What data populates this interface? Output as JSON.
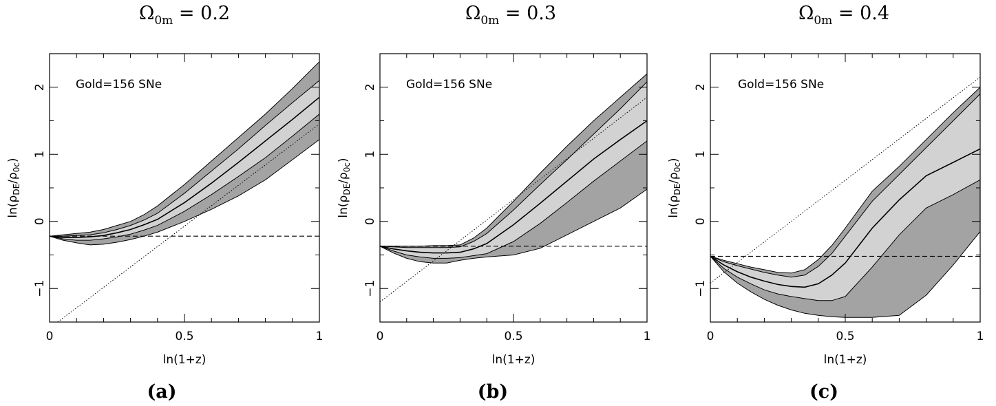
{
  "chart_data": [
    {
      "type": "area",
      "panel_label": "(a)",
      "title": {
        "symbol": "Ω",
        "subscript": "0m",
        "value": " = 0.2"
      },
      "annotation": "Gold=156 SNe",
      "xlabel": "ln(1+z)",
      "ylabel": {
        "prefix": "ln(",
        "rho1": "ρ",
        "sub1": "DE",
        "slash": "/",
        "rho2": "ρ",
        "sub2": "0c",
        "suffix": ")"
      },
      "xlim": [
        0,
        1
      ],
      "ylim": [
        -1.5,
        2.5
      ],
      "xticks": [
        {
          "v": 0,
          "label": "0"
        },
        {
          "v": 0.5,
          "label": "0.5"
        },
        {
          "v": 1,
          "label": "1"
        }
      ],
      "yticks": [
        {
          "v": -1,
          "label": "−1"
        },
        {
          "v": 0,
          "label": "0"
        },
        {
          "v": 1,
          "label": "1"
        },
        {
          "v": 2,
          "label": "2"
        }
      ],
      "x": [
        0,
        0.05,
        0.1,
        0.15,
        0.2,
        0.25,
        0.3,
        0.35,
        0.4,
        0.5,
        0.6,
        0.7,
        0.8,
        0.9,
        1.0
      ],
      "band_2sigma_upper": [
        -0.22,
        -0.2,
        -0.18,
        -0.16,
        -0.12,
        -0.06,
        0.0,
        0.1,
        0.23,
        0.55,
        0.9,
        1.25,
        1.6,
        1.98,
        2.38
      ],
      "band_1sigma_upper": [
        -0.22,
        -0.22,
        -0.21,
        -0.2,
        -0.17,
        -0.12,
        -0.06,
        0.02,
        0.12,
        0.42,
        0.75,
        1.08,
        1.43,
        1.77,
        2.1
      ],
      "best_fit": [
        -0.22,
        -0.24,
        -0.24,
        -0.23,
        -0.21,
        -0.17,
        -0.12,
        -0.05,
        0.03,
        0.28,
        0.57,
        0.88,
        1.2,
        1.52,
        1.85
      ],
      "band_1sigma_lower": [
        -0.22,
        -0.26,
        -0.28,
        -0.28,
        -0.26,
        -0.23,
        -0.19,
        -0.13,
        -0.06,
        0.15,
        0.4,
        0.67,
        0.95,
        1.27,
        1.6
      ],
      "band_2sigma_lower": [
        -0.22,
        -0.28,
        -0.32,
        -0.35,
        -0.34,
        -0.31,
        -0.27,
        -0.22,
        -0.16,
        0.0,
        0.18,
        0.38,
        0.62,
        0.92,
        1.22
      ],
      "dashed_const": -0.22,
      "dotted_line": {
        "x": [
          0.03,
          1.0
        ],
        "y": [
          -1.5,
          1.45
        ]
      },
      "colors": {
        "outer_band": "#a3a3a3",
        "inner_band": "#d2d2d2",
        "lines": "#000000"
      }
    },
    {
      "type": "area",
      "panel_label": "(b)",
      "title": {
        "symbol": "Ω",
        "subscript": "0m",
        "value": " = 0.3"
      },
      "annotation": "Gold=156 SNe",
      "xlabel": "ln(1+z)",
      "ylabel": {
        "prefix": "ln(",
        "rho1": "ρ",
        "sub1": "DE",
        "slash": "/",
        "rho2": "ρ",
        "sub2": "0c",
        "suffix": ")"
      },
      "xlim": [
        0,
        1
      ],
      "ylim": [
        -1.5,
        2.5
      ],
      "xticks": [
        {
          "v": 0,
          "label": "0"
        },
        {
          "v": 0.5,
          "label": "0.5"
        },
        {
          "v": 1,
          "label": "1"
        }
      ],
      "yticks": [
        {
          "v": -1,
          "label": "−1"
        },
        {
          "v": 0,
          "label": "0"
        },
        {
          "v": 1,
          "label": "1"
        },
        {
          "v": 2,
          "label": "2"
        }
      ],
      "x": [
        0,
        0.05,
        0.1,
        0.15,
        0.2,
        0.25,
        0.3,
        0.35,
        0.4,
        0.5,
        0.6,
        0.7,
        0.8,
        0.9,
        1.0
      ],
      "band_2sigma_upper": [
        -0.37,
        -0.37,
        -0.37,
        -0.37,
        -0.36,
        -0.36,
        -0.35,
        -0.25,
        -0.1,
        0.3,
        0.72,
        1.12,
        1.5,
        1.85,
        2.2
      ],
      "band_1sigma_upper": [
        -0.37,
        -0.38,
        -0.39,
        -0.39,
        -0.39,
        -0.39,
        -0.38,
        -0.3,
        -0.18,
        0.17,
        0.55,
        0.92,
        1.3,
        1.68,
        2.08
      ],
      "best_fit": [
        -0.37,
        -0.41,
        -0.44,
        -0.46,
        -0.47,
        -0.47,
        -0.46,
        -0.41,
        -0.33,
        -0.05,
        0.27,
        0.6,
        0.93,
        1.22,
        1.5
      ],
      "band_1sigma_lower": [
        -0.37,
        -0.44,
        -0.5,
        -0.53,
        -0.55,
        -0.55,
        -0.54,
        -0.51,
        -0.48,
        -0.3,
        -0.03,
        0.28,
        0.6,
        0.9,
        1.2
      ],
      "band_2sigma_lower": [
        -0.37,
        -0.47,
        -0.55,
        -0.6,
        -0.62,
        -0.62,
        -0.58,
        -0.55,
        -0.53,
        -0.5,
        -0.4,
        -0.2,
        0.0,
        0.2,
        0.48
      ],
      "dashed_const": -0.37,
      "dotted_line": {
        "x": [
          0.0,
          1.0
        ],
        "y": [
          -1.2,
          1.85
        ]
      },
      "colors": {
        "outer_band": "#a3a3a3",
        "inner_band": "#d2d2d2",
        "lines": "#000000"
      }
    },
    {
      "type": "area",
      "panel_label": "(c)",
      "title": {
        "symbol": "Ω",
        "subscript": "0m",
        "value": " = 0.4"
      },
      "annotation": "Gold=156 SNe",
      "xlabel": "ln(1+z)",
      "ylabel": {
        "prefix": "ln(",
        "rho1": "ρ",
        "sub1": "DE",
        "slash": "/",
        "rho2": "ρ",
        "sub2": "0c",
        "suffix": ")"
      },
      "xlim": [
        0,
        1
      ],
      "ylim": [
        -1.5,
        2.5
      ],
      "xticks": [
        {
          "v": 0,
          "label": "0"
        },
        {
          "v": 0.5,
          "label": "0.5"
        },
        {
          "v": 1,
          "label": "1"
        }
      ],
      "yticks": [
        {
          "v": -1,
          "label": "−1"
        },
        {
          "v": 0,
          "label": "0"
        },
        {
          "v": 1,
          "label": "1"
        },
        {
          "v": 2,
          "label": "2"
        }
      ],
      "x": [
        0,
        0.05,
        0.1,
        0.15,
        0.2,
        0.25,
        0.3,
        0.35,
        0.4,
        0.45,
        0.5,
        0.6,
        0.7,
        0.8,
        0.9,
        1.0
      ],
      "band_2sigma_upper": [
        -0.52,
        -0.58,
        -0.63,
        -0.68,
        -0.72,
        -0.76,
        -0.77,
        -0.72,
        -0.57,
        -0.36,
        -0.1,
        0.45,
        0.82,
        1.22,
        1.62,
        2.0
      ],
      "band_1sigma_upper": [
        -0.52,
        -0.6,
        -0.66,
        -0.71,
        -0.76,
        -0.8,
        -0.83,
        -0.8,
        -0.67,
        -0.48,
        -0.22,
        0.3,
        0.7,
        1.1,
        1.5,
        1.9
      ],
      "best_fit": [
        -0.52,
        -0.65,
        -0.75,
        -0.83,
        -0.89,
        -0.94,
        -0.97,
        -0.98,
        -0.93,
        -0.8,
        -0.62,
        -0.1,
        0.32,
        0.68,
        0.88,
        1.08
      ],
      "band_1sigma_lower": [
        -0.52,
        -0.7,
        -0.83,
        -0.93,
        -1.02,
        -1.08,
        -1.12,
        -1.15,
        -1.18,
        -1.18,
        -1.12,
        -0.68,
        -0.2,
        0.2,
        0.4,
        0.62
      ],
      "band_2sigma_lower": [
        -0.52,
        -0.75,
        -0.92,
        -1.05,
        -1.16,
        -1.25,
        -1.32,
        -1.37,
        -1.4,
        -1.42,
        -1.43,
        -1.43,
        -1.4,
        -1.1,
        -0.65,
        -0.15
      ],
      "dashed_const": -0.52,
      "dotted_line": {
        "x": [
          0.0,
          1.0
        ],
        "y": [
          -0.92,
          2.15
        ]
      },
      "colors": {
        "outer_band": "#a3a3a3",
        "inner_band": "#d2d2d2",
        "lines": "#000000"
      }
    }
  ]
}
